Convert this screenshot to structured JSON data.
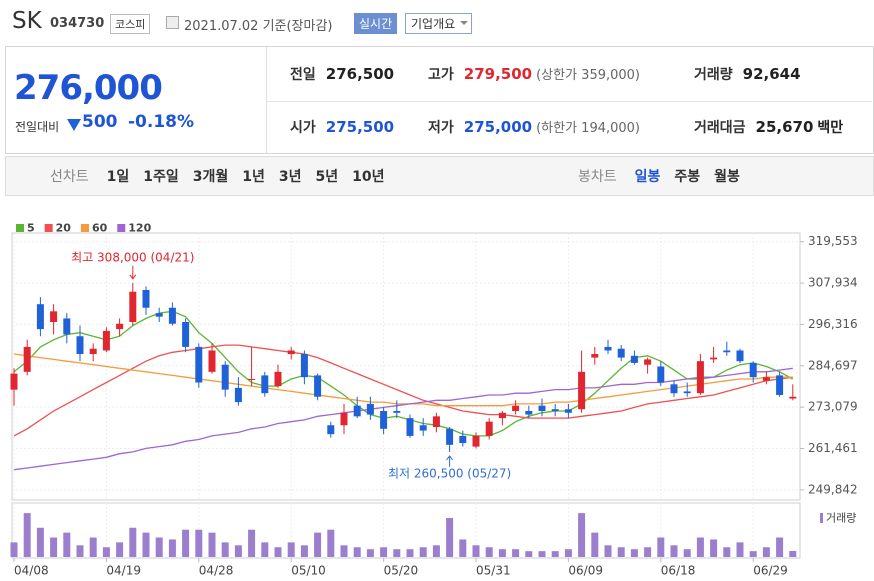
{
  "header": {
    "name": "SK",
    "code": "034730",
    "market": "코스피",
    "date": "2021.07.02 기준(장마감)",
    "realtime": "실시간",
    "overview": "기업개요"
  },
  "quote": {
    "price": "276,000",
    "change_label": "전일대비",
    "change": "500",
    "change_pct": "-0.18%",
    "fields": [
      {
        "label": "전일",
        "value": "276,500"
      },
      {
        "label": "고가",
        "value": "279,500",
        "note": "(상한가 359,000)",
        "color": "#e0262f"
      },
      {
        "label": "거래량",
        "value": "92,644"
      },
      {
        "label": "시가",
        "value": "275,500",
        "color": "#1f55d5"
      },
      {
        "label": "저가",
        "value": "275,000",
        "note": "(하한가 194,000)",
        "color": "#1f55d5"
      },
      {
        "label": "거래대금",
        "value": "25,670",
        "note": "백만"
      }
    ]
  },
  "tabs": {
    "line_label": "선차트",
    "line": [
      "1일",
      "1주일",
      "3개월",
      "1년",
      "3년",
      "5년",
      "10년"
    ],
    "candle_label": "봉차트",
    "candle": [
      "일봉",
      "주봉",
      "월봉"
    ],
    "candle_selected": 0
  },
  "chart_data": {
    "type": "candlestick",
    "categories": [
      "04/08",
      null,
      null,
      null,
      null,
      null,
      null,
      "04/19",
      null,
      null,
      null,
      null,
      null,
      null,
      "04/28",
      null,
      null,
      null,
      null,
      null,
      null,
      "05/10",
      null,
      null,
      null,
      null,
      null,
      null,
      "05/20",
      null,
      null,
      null,
      null,
      null,
      null,
      "05/31",
      null,
      null,
      null,
      null,
      null,
      null,
      "06/09",
      null,
      null,
      null,
      null,
      null,
      null,
      "06/18",
      null,
      null,
      null,
      null,
      null,
      null,
      "06/29",
      null,
      null,
      null
    ],
    "open": [
      278000,
      283000,
      302000,
      297000,
      298000,
      293000,
      288000,
      289000,
      295000,
      297000,
      306000,
      299500,
      301000,
      297000,
      290000,
      283000,
      285000,
      278500,
      281000,
      282000,
      279000,
      288000,
      288000,
      282000,
      268000,
      268000,
      273500,
      274000,
      272000,
      272000,
      270000,
      268000,
      267500,
      267000,
      265000,
      262000,
      265000,
      270000,
      272000,
      272000,
      273500,
      272500,
      272500,
      272500,
      287000,
      290000,
      289500,
      287500,
      285000,
      284500,
      279500,
      277500,
      277000,
      286500,
      289000,
      289000,
      285500,
      280500,
      282000,
      275500
    ],
    "high": [
      284000,
      292000,
      304000,
      302000,
      299500,
      296000,
      291000,
      295500,
      298000,
      308000,
      307000,
      301000,
      302500,
      298000,
      291000,
      291000,
      286000,
      281500,
      290000,
      283000,
      285000,
      290000,
      289000,
      282500,
      269000,
      274000,
      276000,
      276000,
      273000,
      275000,
      271000,
      270000,
      271500,
      267500,
      266500,
      266000,
      270000,
      272000,
      275000,
      273500,
      275500,
      274000,
      274000,
      289000,
      290000,
      292000,
      290500,
      289000,
      287000,
      286000,
      280500,
      280000,
      288000,
      290000,
      291500,
      289500,
      286000,
      283000,
      283000,
      279500
    ],
    "low": [
      273500,
      282000,
      293000,
      293500,
      291000,
      286000,
      286000,
      288500,
      293000,
      296000,
      299000,
      297000,
      296000,
      288500,
      278500,
      282500,
      276000,
      273500,
      279000,
      276000,
      278500,
      286500,
      279500,
      275000,
      264500,
      265500,
      270000,
      269500,
      265500,
      270000,
      264500,
      265000,
      266000,
      260500,
      262000,
      261500,
      264000,
      268000,
      271000,
      270000,
      270500,
      270500,
      270000,
      271500,
      285000,
      288000,
      286000,
      285000,
      282500,
      279000,
      276000,
      276000,
      276500,
      285500,
      287500,
      285500,
      280000,
      279500,
      276000,
      275000
    ],
    "close": [
      282500,
      290000,
      295000,
      300000,
      293500,
      288000,
      289500,
      294500,
      296500,
      305500,
      301000,
      298500,
      296500,
      290000,
      280000,
      289000,
      278000,
      274500,
      281000,
      277000,
      283000,
      289000,
      281500,
      276000,
      265500,
      271500,
      270500,
      271000,
      267000,
      271500,
      265000,
      266500,
      270500,
      262500,
      263000,
      265000,
      269000,
      271500,
      273500,
      271000,
      272000,
      272000,
      271500,
      283000,
      288000,
      289000,
      287000,
      285500,
      286500,
      280000,
      277000,
      277000,
      286000,
      287000,
      288500,
      286000,
      281500,
      281500,
      276500,
      276000
    ],
    "up_color": "#e0262f",
    "down_color": "#1f62d8",
    "series": [
      {
        "name": "5",
        "color": "#5cb531",
        "values": [
          283000,
          286000,
          290000,
          292000,
          293500,
          294000,
          293000,
          292000,
          293000,
          296000,
          298000,
          299500,
          300000,
          298500,
          294000,
          291000,
          287000,
          283000,
          280000,
          279000,
          279000,
          281000,
          282000,
          281500,
          279000,
          276500,
          273500,
          271000,
          270000,
          270500,
          269500,
          268500,
          268000,
          267000,
          265500,
          265000,
          265000,
          266500,
          269000,
          270500,
          271500,
          272000,
          272000,
          274000,
          277000,
          280500,
          284000,
          287000,
          287500,
          286000,
          283500,
          281000,
          281000,
          281500,
          283500,
          285000,
          285500,
          284500,
          283000,
          281000
        ]
      },
      {
        "name": "20",
        "color": "#f05050",
        "values": [
          265000,
          267000,
          269500,
          272000,
          274000,
          276000,
          278000,
          280000,
          282000,
          284000,
          286000,
          287500,
          288500,
          289000,
          289500,
          290000,
          290500,
          290500,
          290000,
          289500,
          289000,
          288500,
          288000,
          287000,
          285500,
          284000,
          282500,
          281000,
          279500,
          278000,
          276500,
          275000,
          274000,
          273000,
          272000,
          271500,
          271000,
          271000,
          270500,
          270000,
          270000,
          270000,
          270000,
          270500,
          271000,
          271500,
          272000,
          273000,
          274000,
          274500,
          275000,
          275500,
          276000,
          276500,
          277500,
          278500,
          279500,
          280500,
          281000,
          281500
        ]
      },
      {
        "name": "60",
        "color": "#f59b3c",
        "values": [
          288000,
          287500,
          287000,
          286500,
          286000,
          285500,
          285000,
          284500,
          284000,
          283500,
          283000,
          282500,
          282000,
          281500,
          281000,
          280500,
          280000,
          279500,
          279000,
          278500,
          278000,
          277500,
          277000,
          276500,
          276000,
          275500,
          275000,
          274500,
          274500,
          274000,
          274000,
          274000,
          273500,
          273500,
          273500,
          273500,
          273500,
          273500,
          274000,
          274000,
          274000,
          274500,
          274500,
          275000,
          275500,
          276000,
          276500,
          277000,
          277500,
          278000,
          278500,
          279000,
          279500,
          280000,
          280500,
          281000,
          281000,
          281500,
          281500,
          281500
        ]
      },
      {
        "name": "120",
        "color": "#a066d0",
        "values": [
          255500,
          256000,
          256500,
          257000,
          257500,
          258000,
          258500,
          259000,
          260000,
          260500,
          261500,
          262000,
          262500,
          263500,
          264000,
          265000,
          265500,
          266000,
          267000,
          267500,
          268500,
          269000,
          269500,
          270500,
          271000,
          271500,
          272000,
          272500,
          273000,
          273500,
          274000,
          274500,
          275000,
          275000,
          275500,
          276000,
          276500,
          276500,
          277000,
          277000,
          277500,
          278000,
          278000,
          278500,
          278500,
          279000,
          279500,
          279500,
          280000,
          280000,
          280500,
          281000,
          281500,
          281500,
          282000,
          282500,
          283000,
          283000,
          283500,
          284000
        ]
      }
    ],
    "volume": {
      "name": "거래량",
      "color": "#9b7fce",
      "values": [
        225000,
        675000,
        450000,
        300000,
        375000,
        180000,
        300000,
        150000,
        225000,
        450000,
        375000,
        300000,
        270000,
        420000,
        420000,
        375000,
        225000,
        180000,
        420000,
        225000,
        150000,
        225000,
        180000,
        375000,
        420000,
        180000,
        150000,
        120000,
        150000,
        120000,
        120000,
        150000,
        180000,
        600000,
        270000,
        180000,
        150000,
        120000,
        120000,
        90000,
        90000,
        90000,
        120000,
        675000,
        375000,
        180000,
        150000,
        120000,
        150000,
        300000,
        180000,
        120000,
        300000,
        270000,
        150000,
        225000,
        90000,
        150000,
        300000,
        92644
      ]
    },
    "vlim": [
      0,
      800000
    ],
    "ylim": [
      247000,
      322000
    ],
    "yticks": [
      {
        "value": 249842,
        "label": "249,842"
      },
      {
        "value": 261461,
        "label": "261,461"
      },
      {
        "value": 273079,
        "label": "273,079"
      },
      {
        "value": 284697,
        "label": "284,697"
      },
      {
        "value": 296316,
        "label": "296,316"
      },
      {
        "value": 307934,
        "label": "307,934"
      },
      {
        "value": 319553,
        "label": "319,553"
      }
    ],
    "grid": true,
    "annotations": [
      {
        "label": "최고 308,000 (04/21)",
        "color": "#e0262f"
      },
      {
        "label": "최저 260,500 (05/27)",
        "color": "#2f6fd0"
      }
    ]
  }
}
